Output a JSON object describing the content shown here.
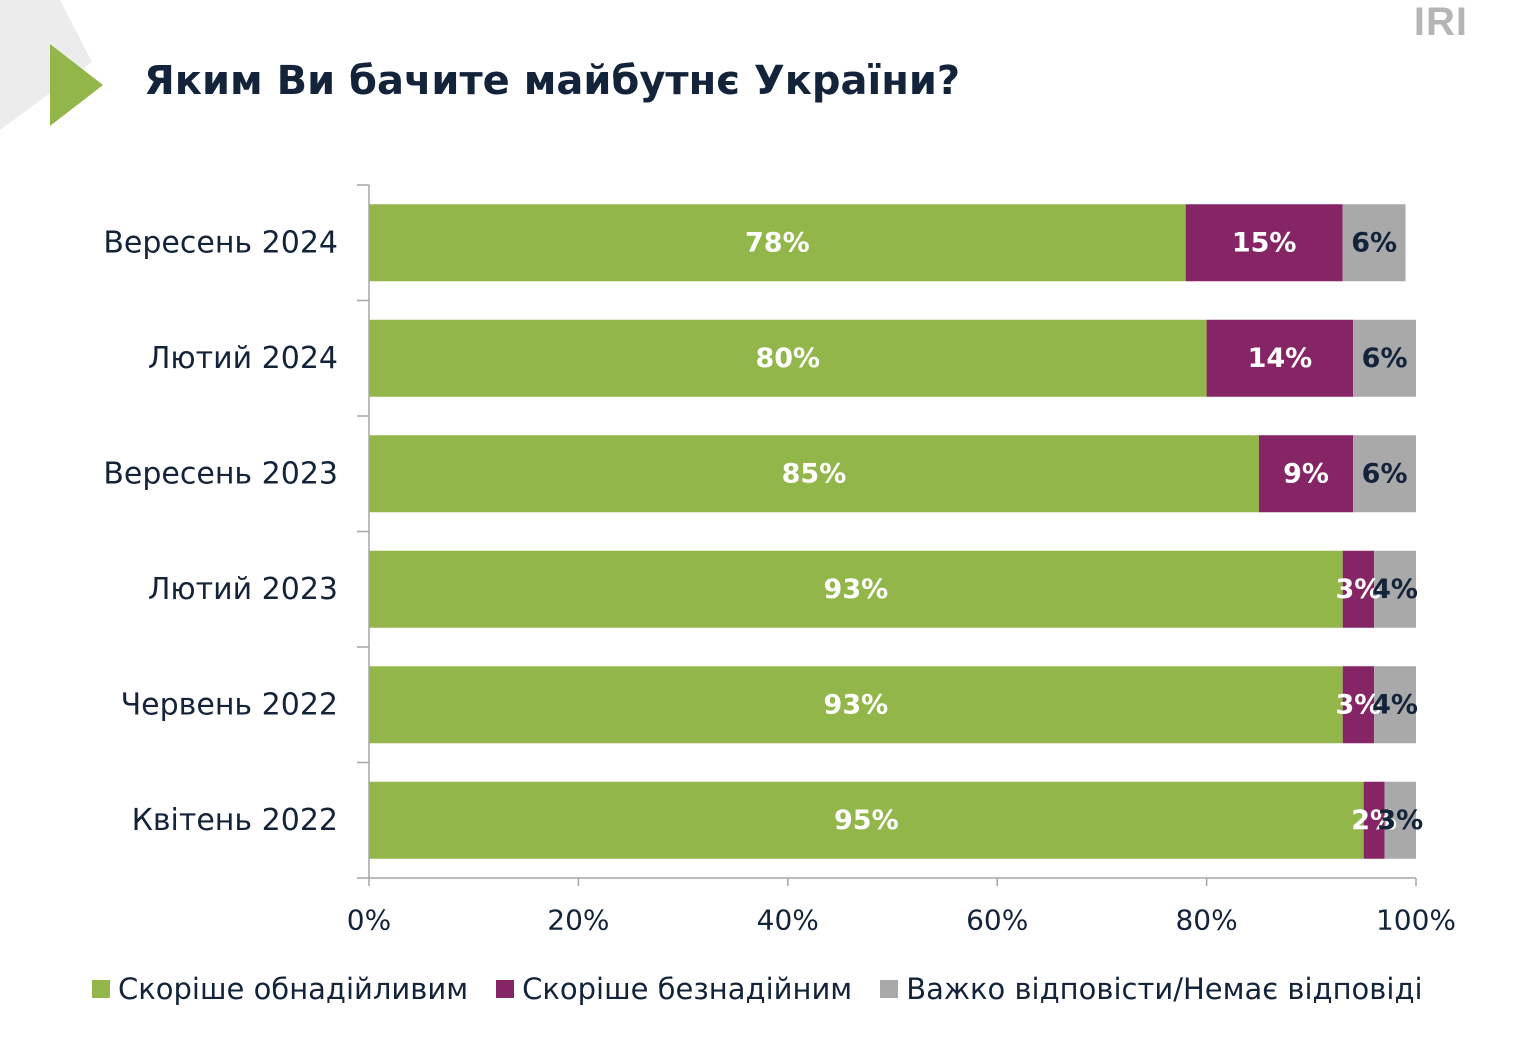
{
  "header": {
    "title": "Яким Ви бачите майбутнє України?",
    "logo": "IRI"
  },
  "colors": {
    "accent_triangle": "#93b64b",
    "decor_gray": "#ececec",
    "title": "#13233a",
    "axis": "#a6a6a6"
  },
  "chart_data": {
    "type": "bar",
    "orientation": "horizontal",
    "stacked": true,
    "title": "Яким Ви бачите майбутнє України?",
    "categories": [
      "Вересень 2024",
      "Лютий 2024",
      "Вересень 2023",
      "Лютий 2023",
      "Червень 2022",
      "Квітень 2022"
    ],
    "series": [
      {
        "name": "Скоріше обнадійливим",
        "color": "#93b64b",
        "label_color": "#ffffff",
        "values": [
          78,
          80,
          85,
          93,
          93,
          95
        ],
        "labels": [
          "78%",
          "80%",
          "85%",
          "93%",
          "93%",
          "95%"
        ]
      },
      {
        "name": "Скоріше безнадійним",
        "color": "#862565",
        "label_color": "#ffffff",
        "values": [
          15,
          14,
          9,
          3,
          3,
          2
        ],
        "labels": [
          "15%",
          "14%",
          "9%",
          "3%",
          "3%",
          "2%"
        ]
      },
      {
        "name": "Важко відповісти/Немає відповіді",
        "color": "#a9a9a9",
        "label_color": "#13233a",
        "values": [
          6,
          6,
          6,
          4,
          4,
          3
        ],
        "labels": [
          "6%",
          "6%",
          "6%",
          "4%",
          "4%",
          "3%"
        ]
      }
    ],
    "xlim": [
      0,
      100
    ],
    "xticks": [
      "0%",
      "20%",
      "40%",
      "60%",
      "80%",
      "100%"
    ],
    "grid": false,
    "legend_position": "bottom"
  }
}
